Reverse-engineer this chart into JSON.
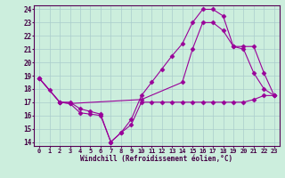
{
  "xlabel": "Windchill (Refroidissement éolien,°C)",
  "bg_color": "#cceedd",
  "line_color": "#990099",
  "grid_color": "#aacccc",
  "xlim": [
    -0.5,
    23.5
  ],
  "ylim": [
    13.7,
    24.3
  ],
  "yticks": [
    14,
    15,
    16,
    17,
    18,
    19,
    20,
    21,
    22,
    23,
    24
  ],
  "xticks": [
    0,
    1,
    2,
    3,
    4,
    5,
    6,
    7,
    8,
    9,
    10,
    11,
    12,
    13,
    14,
    15,
    16,
    17,
    18,
    19,
    20,
    21,
    22,
    23
  ],
  "line1_x": [
    0,
    1,
    2,
    3,
    4,
    5,
    6,
    7,
    8,
    9,
    10,
    11,
    12,
    13,
    14,
    15,
    16,
    17,
    18,
    19,
    20,
    21,
    22,
    23
  ],
  "line1_y": [
    18.8,
    17.9,
    17.0,
    16.9,
    16.2,
    16.1,
    16.0,
    14.0,
    14.7,
    15.3,
    17.0,
    17.0,
    17.0,
    17.0,
    17.0,
    17.0,
    17.0,
    17.0,
    17.0,
    17.0,
    17.0,
    17.2,
    17.5,
    17.5
  ],
  "line2_x": [
    0,
    2,
    3,
    4,
    5,
    6,
    7,
    8,
    9,
    10,
    11,
    12,
    13,
    14,
    15,
    16,
    17,
    18,
    19,
    20,
    21,
    22,
    23
  ],
  "line2_y": [
    18.8,
    17.0,
    17.0,
    16.5,
    16.3,
    16.1,
    14.0,
    14.7,
    15.7,
    17.5,
    18.5,
    19.5,
    20.5,
    21.4,
    23.0,
    24.0,
    24.0,
    23.5,
    21.2,
    21.0,
    19.2,
    18.0,
    17.5
  ],
  "line3_x": [
    0,
    2,
    3,
    10,
    14,
    15,
    16,
    17,
    18,
    19,
    20,
    21,
    22,
    23
  ],
  "line3_y": [
    18.8,
    17.0,
    16.9,
    17.2,
    18.5,
    21.0,
    23.0,
    23.0,
    22.4,
    21.2,
    21.2,
    21.2,
    19.2,
    17.5
  ]
}
